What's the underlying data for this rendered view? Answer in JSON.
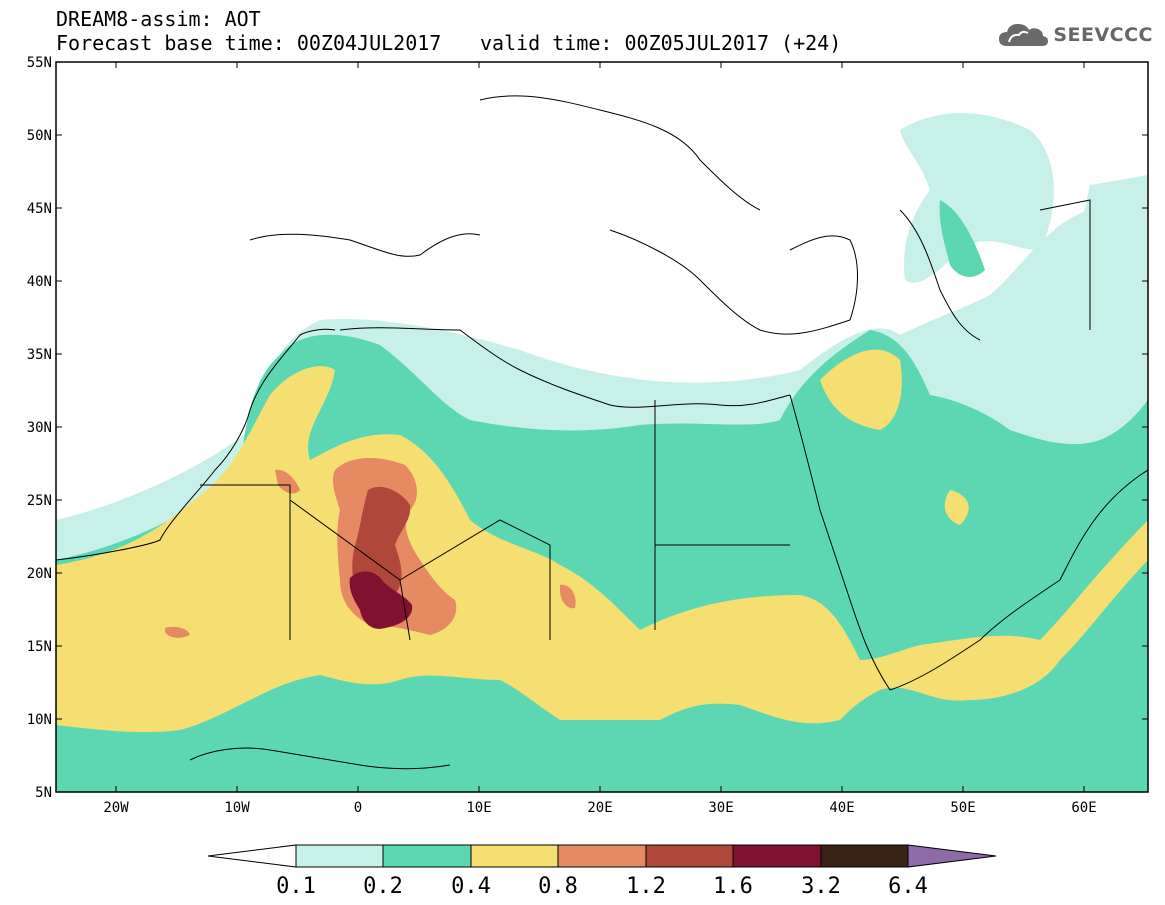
{
  "title": {
    "line1": "DREAM8-assim: AOT",
    "line2": "Forecast base time: 00Z04JUL2017",
    "line3": "valid time: 00Z05JUL2017 (+24)"
  },
  "logo": {
    "text": "SEEVCCC",
    "icon": "cloud-icon"
  },
  "axes": {
    "lat_labels": [
      "55N",
      "50N",
      "45N",
      "40N",
      "35N",
      "30N",
      "25N",
      "20N",
      "15N",
      "10N",
      "5N"
    ],
    "lon_labels": [
      "20W",
      "10W",
      "0",
      "10E",
      "20E",
      "30E",
      "40E",
      "50E",
      "60E"
    ]
  },
  "colorbar": {
    "levels": [
      "0.1",
      "0.2",
      "0.4",
      "0.8",
      "1.2",
      "1.6",
      "3.2",
      "6.4"
    ],
    "colors": {
      "below": "#ffffff",
      "c1": "#c7f0e9",
      "c2": "#5cd7b2",
      "c3": "#f5df72",
      "c4": "#e58a62",
      "c5": "#b0473b",
      "c6": "#80122f",
      "c7": "#3a2315",
      "above": "#8e6aa7"
    }
  }
}
